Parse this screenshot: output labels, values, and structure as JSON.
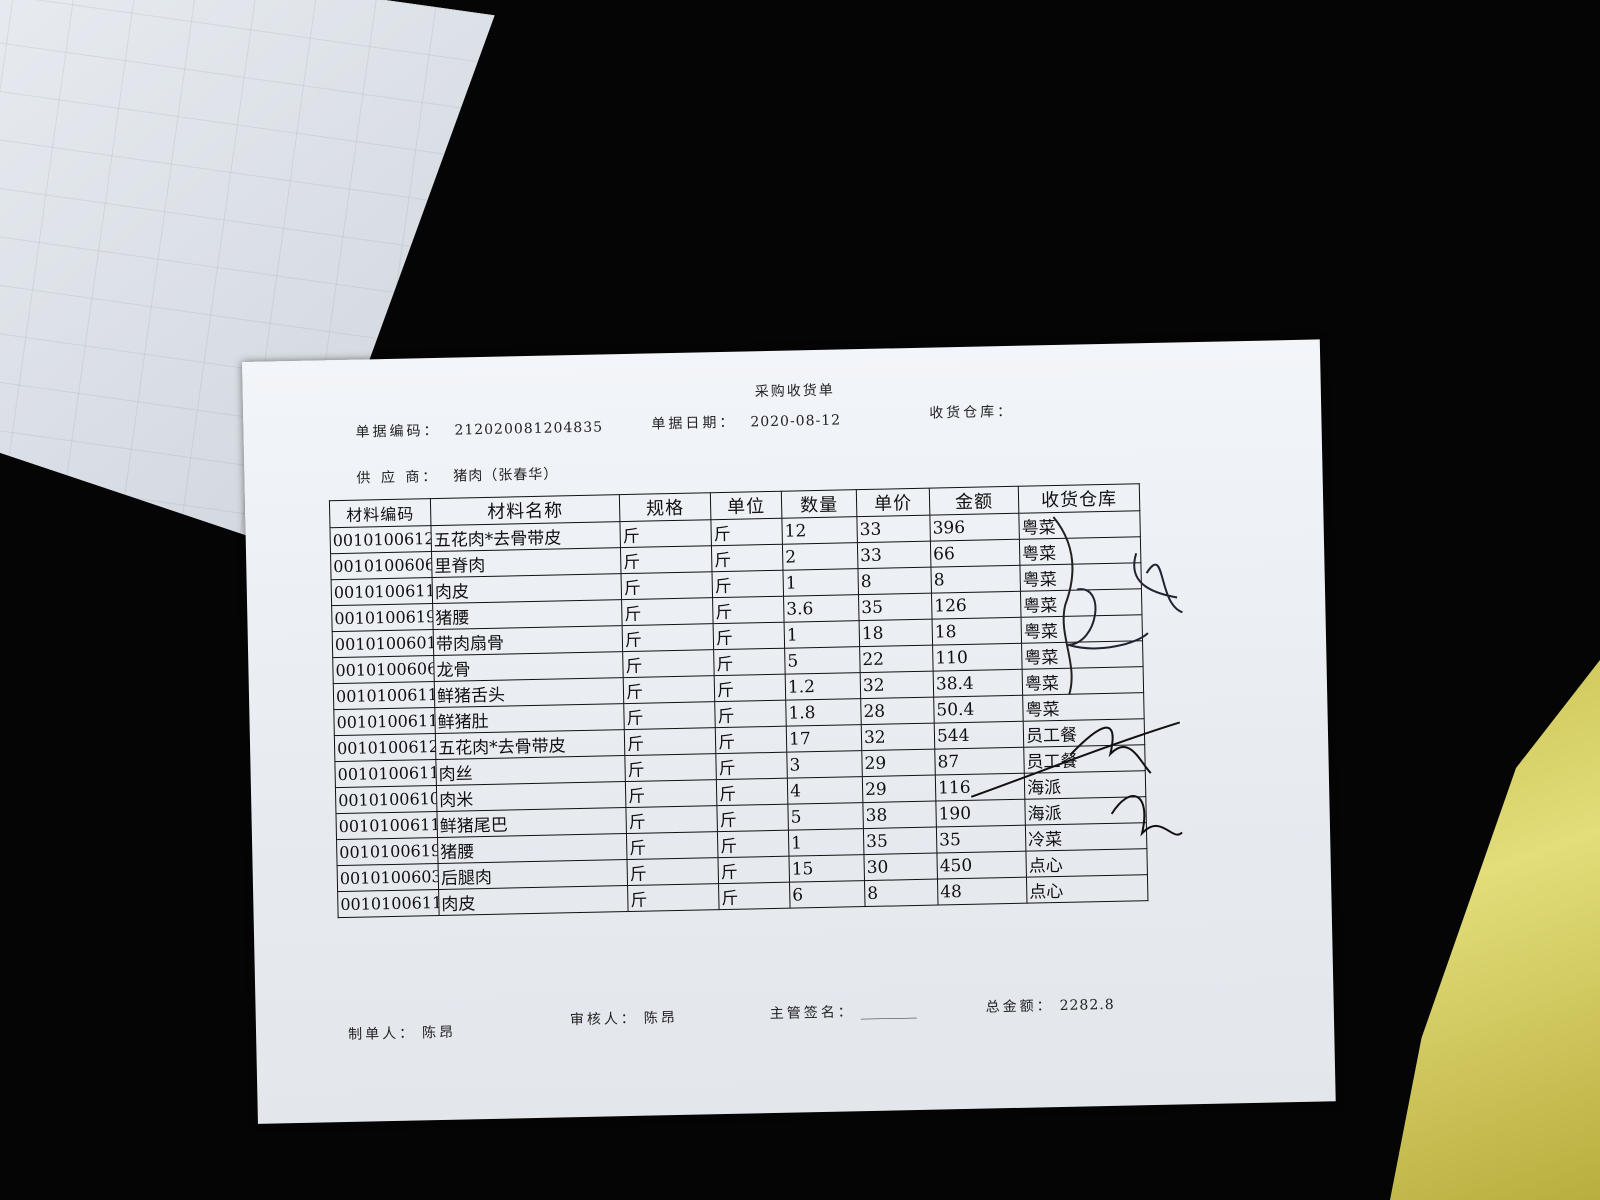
{
  "document": {
    "title": "采购收货单",
    "doc_no_label": "单据编码：",
    "doc_no": "212020081204835",
    "date_label": "单据日期：",
    "date": "2020-08-12",
    "warehouse_label": "收货仓库：",
    "supplier_label": "供 应 商：",
    "supplier": "猪肉（张春华）"
  },
  "table": {
    "headers": [
      "材料编码",
      "材料名称",
      "规格",
      "单位",
      "数量",
      "单价",
      "金额",
      "收货仓库"
    ],
    "rows": [
      [
        "0010100612",
        "五花肉*去骨带皮",
        "斤",
        "斤",
        "12",
        "33",
        "396",
        "粤菜"
      ],
      [
        "0010100606",
        "里脊肉",
        "斤",
        "斤",
        "2",
        "33",
        "66",
        "粤菜"
      ],
      [
        "0010100611",
        "肉皮",
        "斤",
        "斤",
        "1",
        "8",
        "8",
        "粤菜"
      ],
      [
        "0010100619",
        "猪腰",
        "斤",
        "斤",
        "3.6",
        "35",
        "126",
        "粤菜"
      ],
      [
        "0010100601",
        "带肉扇骨",
        "斤",
        "斤",
        "1",
        "18",
        "18",
        "粤菜"
      ],
      [
        "0010100606",
        "龙骨",
        "斤",
        "斤",
        "5",
        "22",
        "110",
        "粤菜"
      ],
      [
        "0010100611",
        "鲜猪舌头",
        "斤",
        "斤",
        "1.2",
        "32",
        "38.4",
        "粤菜"
      ],
      [
        "0010100611",
        "鲜猪肚",
        "斤",
        "斤",
        "1.8",
        "28",
        "50.4",
        "粤菜"
      ],
      [
        "0010100612",
        "五花肉*去骨带皮",
        "斤",
        "斤",
        "17",
        "32",
        "544",
        "员工餐"
      ],
      [
        "0010100611",
        "肉丝",
        "斤",
        "斤",
        "3",
        "29",
        "87",
        "员工餐"
      ],
      [
        "0010100610",
        "肉米",
        "斤",
        "斤",
        "4",
        "29",
        "116",
        "海派"
      ],
      [
        "0010100611",
        "鲜猪尾巴",
        "斤",
        "斤",
        "5",
        "38",
        "190",
        "海派"
      ],
      [
        "0010100619",
        "猪腰",
        "斤",
        "斤",
        "1",
        "35",
        "35",
        "冷菜"
      ],
      [
        "0010100603",
        "后腿肉",
        "斤",
        "斤",
        "15",
        "30",
        "450",
        "点心"
      ],
      [
        "0010100611",
        "肉皮",
        "斤",
        "斤",
        "6",
        "8",
        "48",
        "点心"
      ]
    ]
  },
  "footer": {
    "maker_label": "制单人：",
    "maker": "陈昂",
    "reviewer_label": "审核人：",
    "reviewer": "陈昂",
    "supervisor_label": "主管签名：",
    "supervisor": "________",
    "total_label": "总金额：",
    "total": "2282.8"
  }
}
